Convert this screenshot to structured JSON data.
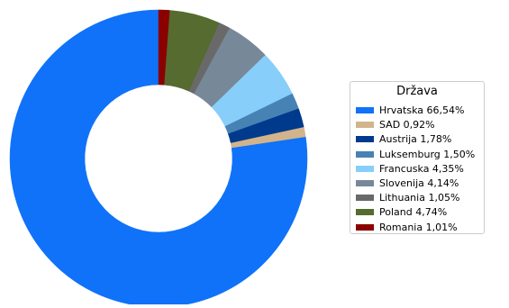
{
  "chart_data": {
    "type": "pie",
    "donut": true,
    "start_angle_deg": 90,
    "direction": "counterclockwise",
    "legend_title": "Država",
    "legend_placement": "right",
    "slices": [
      {
        "label": "Hrvatska 66,54%",
        "value": 66.54,
        "color": "#0f72f9"
      },
      {
        "label": "SAD 0,92%",
        "value": 0.92,
        "color": "#d2b48c"
      },
      {
        "label": "Austrija 1,78%",
        "value": 1.78,
        "color": "#003a8c"
      },
      {
        "label": "Luksemburg 1,50%",
        "value": 1.5,
        "color": "#4682b4"
      },
      {
        "label": "Francuska 4,35%",
        "value": 4.35,
        "color": "#87cefa"
      },
      {
        "label": "Slovenija 4,14%",
        "value": 4.14,
        "color": "#778899"
      },
      {
        "label": "Lithuania 1,05%",
        "value": 1.05,
        "color": "#696969"
      },
      {
        "label": "Poland 4,74%",
        "value": 4.74,
        "color": "#556b2f"
      },
      {
        "label": "Romania 1,01%",
        "value": 1.01,
        "color": "#8b0000"
      }
    ]
  }
}
